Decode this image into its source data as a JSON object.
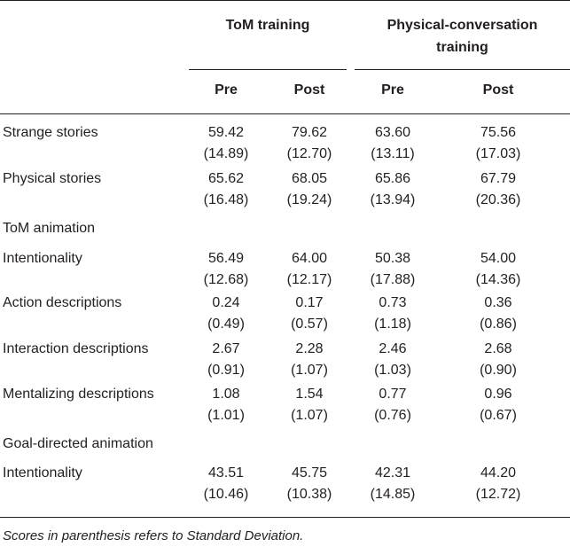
{
  "groups": [
    {
      "label_lines": [
        "ToM training"
      ]
    },
    {
      "label_lines": [
        "Physical-conversation",
        "training"
      ]
    }
  ],
  "columns": [
    "Pre",
    "Post",
    "Pre",
    "Post"
  ],
  "rows": [
    {
      "label": "Strange stories",
      "means": [
        "59.42",
        "79.62",
        "63.60",
        "75.56"
      ],
      "sds": [
        "(14.89)",
        "(12.70)",
        "(13.11)",
        "(17.03)"
      ]
    },
    {
      "label": "Physical stories",
      "means": [
        "65.62",
        "68.05",
        "65.86",
        "67.79"
      ],
      "sds": [
        "(16.48)",
        "(19.24)",
        "(13.94)",
        "(20.36)"
      ]
    },
    {
      "label": "ToM animation",
      "section": true
    },
    {
      "label": "Intentionality",
      "means": [
        "56.49",
        "64.00",
        "50.38",
        "54.00"
      ],
      "sds": [
        "(12.68)",
        "(12.17)",
        "(17.88)",
        "(14.36)"
      ]
    },
    {
      "label": "Action descriptions",
      "means": [
        "0.24",
        "0.17",
        "0.73",
        "0.36"
      ],
      "sds": [
        "(0.49)",
        "(0.57)",
        "(1.18)",
        "(0.86)"
      ]
    },
    {
      "label": "Interaction descriptions",
      "means": [
        "2.67",
        "2.28",
        "2.46",
        "2.68"
      ],
      "sds": [
        "(0.91)",
        "(1.07)",
        "(1.03)",
        "(0.90)"
      ]
    },
    {
      "label": "Mentalizing descriptions",
      "means": [
        "1.08",
        "1.54",
        "0.77",
        "0.96"
      ],
      "sds": [
        "(1.01)",
        "(1.07)",
        "(0.76)",
        "(0.67)"
      ]
    },
    {
      "label": "Goal-directed animation",
      "section": true
    },
    {
      "label": "Intentionality",
      "means": [
        "43.51",
        "45.75",
        "42.31",
        "44.20"
      ],
      "sds": [
        "(10.46)",
        "(10.38)",
        "(14.85)",
        "(12.72)"
      ]
    }
  ],
  "footnote": "Scores in parenthesis refers to Standard Deviation."
}
